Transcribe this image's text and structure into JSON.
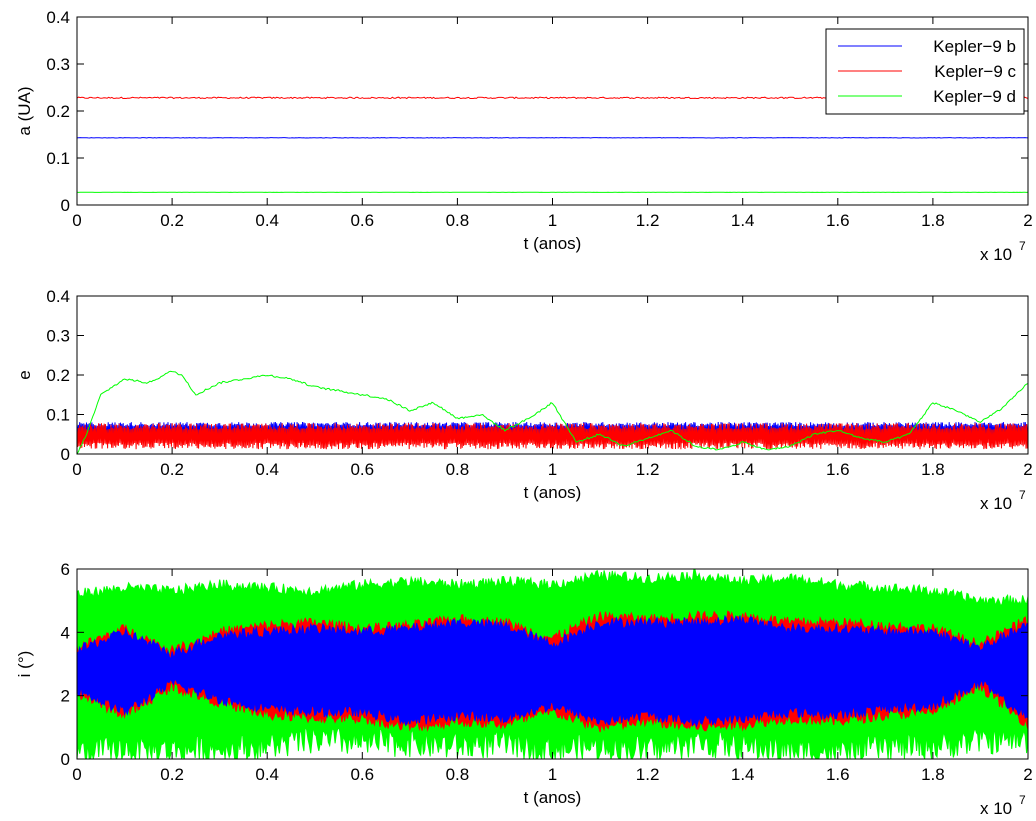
{
  "figure": {
    "x_exponent_label": "x 10",
    "x_exponent_power": "7"
  },
  "chart_data": [
    {
      "type": "line",
      "title": "",
      "xlabel": "t (anos)",
      "ylabel": "a (UA)",
      "xlim": [
        0,
        2
      ],
      "ylim": [
        0,
        0.4
      ],
      "xticks": [
        "0",
        "0.2",
        "0.4",
        "0.6",
        "0.8",
        "1",
        "1.2",
        "1.4",
        "1.6",
        "1.8",
        "2"
      ],
      "yticks": [
        "0",
        "0.1",
        "0.2",
        "0.3",
        "0.4"
      ],
      "legend": {
        "placement": "top-right",
        "entries": [
          "Kepler−9 b",
          "Kepler−9 c",
          "Kepler−9 d"
        ]
      },
      "x": [
        0,
        0.2,
        0.4,
        0.6,
        0.8,
        1.0,
        1.2,
        1.4,
        1.6,
        1.8,
        2.0
      ],
      "series": [
        {
          "name": "Kepler−9 c",
          "color": "#ff0000",
          "values": [
            0.228,
            0.228,
            0.228,
            0.228,
            0.228,
            0.228,
            0.228,
            0.228,
            0.228,
            0.228,
            0.228
          ],
          "spread": 0.003
        },
        {
          "name": "Kepler−9 b",
          "color": "#0000ff",
          "values": [
            0.143,
            0.143,
            0.143,
            0.143,
            0.143,
            0.143,
            0.143,
            0.143,
            0.143,
            0.143,
            0.143
          ],
          "spread": 0.001
        },
        {
          "name": "Kepler−9 d",
          "color": "#00ff00",
          "values": [
            0.027,
            0.027,
            0.027,
            0.027,
            0.027,
            0.027,
            0.027,
            0.027,
            0.027,
            0.027,
            0.027
          ],
          "spread": 0.0005
        }
      ]
    },
    {
      "type": "line",
      "title": "",
      "xlabel": "t (anos)",
      "ylabel": "e",
      "xlim": [
        0,
        2
      ],
      "ylim": [
        0,
        0.4
      ],
      "xticks": [
        "0",
        "0.2",
        "0.4",
        "0.6",
        "0.8",
        "1",
        "1.2",
        "1.4",
        "1.6",
        "1.8",
        "2"
      ],
      "yticks": [
        "0",
        "0.1",
        "0.2",
        "0.3",
        "0.4"
      ],
      "x": [
        0,
        0.02,
        0.05,
        0.1,
        0.15,
        0.2,
        0.22,
        0.25,
        0.3,
        0.35,
        0.4,
        0.45,
        0.5,
        0.55,
        0.6,
        0.65,
        0.7,
        0.75,
        0.8,
        0.85,
        0.9,
        0.95,
        1.0,
        1.05,
        1.1,
        1.15,
        1.2,
        1.25,
        1.3,
        1.35,
        1.4,
        1.45,
        1.5,
        1.55,
        1.6,
        1.65,
        1.7,
        1.75,
        1.8,
        1.85,
        1.9,
        1.95,
        2.0
      ],
      "series": [
        {
          "name": "Kepler−9 b",
          "color": "#0000ff",
          "values": [
            0.06,
            0.06,
            0.06,
            0.06,
            0.06,
            0.06,
            0.06,
            0.06,
            0.06,
            0.06,
            0.06,
            0.06,
            0.06,
            0.06,
            0.06,
            0.06,
            0.06,
            0.06,
            0.06,
            0.06,
            0.06,
            0.06,
            0.06,
            0.06,
            0.06,
            0.06,
            0.06,
            0.06,
            0.06,
            0.06,
            0.06,
            0.06,
            0.06,
            0.06,
            0.06,
            0.06,
            0.06,
            0.06,
            0.06,
            0.06,
            0.06,
            0.06,
            0.06
          ],
          "spread": 0.021
        },
        {
          "name": "Kepler−9 c",
          "color": "#ff0000",
          "values": [
            0.045,
            0.045,
            0.045,
            0.045,
            0.045,
            0.045,
            0.045,
            0.045,
            0.045,
            0.045,
            0.045,
            0.045,
            0.045,
            0.045,
            0.045,
            0.045,
            0.045,
            0.045,
            0.045,
            0.045,
            0.045,
            0.045,
            0.045,
            0.045,
            0.045,
            0.045,
            0.045,
            0.045,
            0.045,
            0.045,
            0.045,
            0.045,
            0.045,
            0.045,
            0.045,
            0.045,
            0.045,
            0.045,
            0.045,
            0.045,
            0.045,
            0.045,
            0.045
          ],
          "spread": 0.033
        },
        {
          "name": "Kepler−9 d",
          "color": "#00ff00",
          "values": [
            0.0,
            0.05,
            0.15,
            0.19,
            0.18,
            0.21,
            0.2,
            0.15,
            0.18,
            0.19,
            0.2,
            0.19,
            0.17,
            0.16,
            0.15,
            0.14,
            0.11,
            0.13,
            0.09,
            0.1,
            0.06,
            0.09,
            0.13,
            0.03,
            0.05,
            0.02,
            0.04,
            0.06,
            0.02,
            0.01,
            0.03,
            0.01,
            0.02,
            0.05,
            0.06,
            0.04,
            0.03,
            0.05,
            0.13,
            0.11,
            0.08,
            0.12,
            0.18
          ],
          "spread": 0.005
        }
      ]
    },
    {
      "type": "area",
      "title": "",
      "xlabel": "t (anos)",
      "ylabel": "i (°)",
      "xlim": [
        0,
        2
      ],
      "ylim": [
        0,
        6
      ],
      "xticks": [
        "0",
        "0.2",
        "0.4",
        "0.6",
        "0.8",
        "1",
        "1.2",
        "1.4",
        "1.6",
        "1.8",
        "2"
      ],
      "yticks": [
        "0",
        "2",
        "4",
        "6"
      ],
      "x": [
        0,
        0.1,
        0.2,
        0.3,
        0.4,
        0.5,
        0.6,
        0.7,
        0.8,
        0.9,
        1.0,
        1.1,
        1.2,
        1.3,
        1.4,
        1.5,
        1.6,
        1.7,
        1.8,
        1.9,
        2.0
      ],
      "series": [
        {
          "name": "Kepler−9 d",
          "color": "#00ff00",
          "upper": [
            5.2,
            5.4,
            5.3,
            5.5,
            5.4,
            5.3,
            5.5,
            5.6,
            5.5,
            5.6,
            5.5,
            5.8,
            5.7,
            5.8,
            5.6,
            5.7,
            5.5,
            5.4,
            5.3,
            5.0,
            5.0
          ],
          "lower": [
            0.2,
            0.3,
            0.3,
            0.3,
            0.4,
            0.6,
            0.5,
            0.5,
            0.4,
            0.5,
            0.3,
            0.4,
            0.3,
            0.5,
            0.4,
            0.3,
            0.2,
            0.4,
            0.4,
            0.6,
            0.6
          ]
        },
        {
          "name": "Kepler−9 c",
          "color": "#ff0000",
          "upper": [
            3.5,
            4.1,
            3.4,
            4.0,
            4.2,
            4.3,
            4.1,
            4.2,
            4.4,
            4.3,
            3.8,
            4.5,
            4.4,
            4.5,
            4.5,
            4.3,
            4.3,
            4.2,
            4.1,
            3.6,
            4.4
          ],
          "lower": [
            2.1,
            1.4,
            2.3,
            1.8,
            1.4,
            1.3,
            1.3,
            1.0,
            1.2,
            1.1,
            1.5,
            1.0,
            1.2,
            1.0,
            1.1,
            1.3,
            1.2,
            1.4,
            1.5,
            2.3,
            1.1
          ]
        },
        {
          "name": "Kepler−9 b",
          "color": "#0000ff",
          "upper": [
            3.4,
            4.0,
            3.3,
            3.9,
            4.0,
            4.1,
            4.0,
            4.1,
            4.3,
            4.2,
            3.6,
            4.3,
            4.3,
            4.3,
            4.4,
            4.1,
            4.1,
            4.0,
            4.0,
            3.5,
            4.2
          ],
          "lower": [
            2.2,
            1.5,
            2.4,
            1.9,
            1.6,
            1.5,
            1.5,
            1.2,
            1.4,
            1.3,
            1.7,
            1.2,
            1.4,
            1.2,
            1.3,
            1.5,
            1.4,
            1.6,
            1.7,
            2.4,
            1.3
          ]
        }
      ]
    }
  ]
}
